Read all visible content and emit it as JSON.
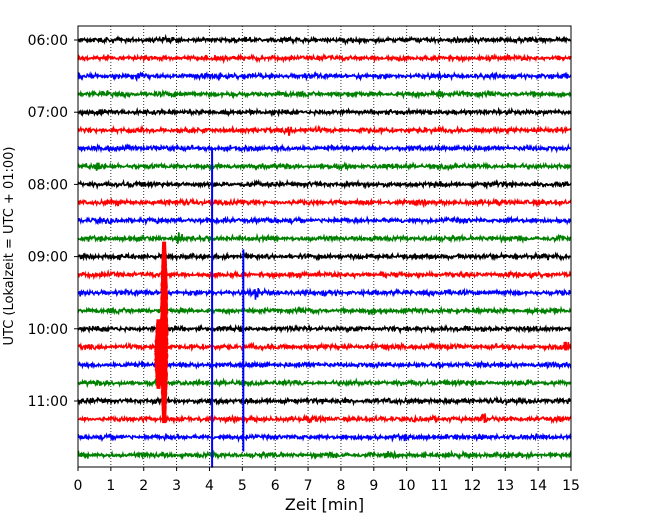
{
  "chart_data": {
    "type": "line",
    "title": "",
    "xlabel": "Zeit  [min]",
    "ylabel": "UTC (Lokalzeit = UTC + 01:00)",
    "xlim": [
      0,
      15
    ],
    "x_ticks": [
      0,
      1,
      2,
      3,
      4,
      5,
      6,
      7,
      8,
      9,
      10,
      11,
      12,
      13,
      14,
      15
    ],
    "x_tick_labels": [
      "0",
      "1",
      "2",
      "3",
      "4",
      "5",
      "6",
      "7",
      "8",
      "9",
      "10",
      "11",
      "12",
      "13",
      "14",
      "15"
    ],
    "y_tick_labels": [
      "06:00",
      "07:00",
      "08:00",
      "09:00",
      "10:00",
      "11:00"
    ],
    "trace_minutes": 15,
    "grid": {
      "x": "dotted",
      "y": false
    },
    "colors": [
      "#000000",
      "#ff0000",
      "#0000ff",
      "#008000"
    ],
    "traces": [
      {
        "start": "06:00",
        "color": "#000000",
        "events": []
      },
      {
        "start": "06:15",
        "color": "#ff0000",
        "events": []
      },
      {
        "start": "06:30",
        "color": "#0000ff",
        "events": [
          {
            "t": 1.85,
            "amp": 0.5
          },
          {
            "t": 4.3,
            "amp": 0.35
          }
        ]
      },
      {
        "start": "06:45",
        "color": "#008000",
        "events": [
          {
            "t": 11.0,
            "amp": 0.35
          }
        ]
      },
      {
        "start": "07:00",
        "color": "#000000",
        "events": []
      },
      {
        "start": "07:15",
        "color": "#ff0000",
        "events": [
          {
            "t": 6.4,
            "amp": 0.55
          }
        ]
      },
      {
        "start": "07:30",
        "color": "#0000ff",
        "events": []
      },
      {
        "start": "07:45",
        "color": "#008000",
        "events": [
          {
            "t": 0.65,
            "amp": 0.4
          }
        ]
      },
      {
        "start": "08:00",
        "color": "#000000",
        "events": []
      },
      {
        "start": "08:15",
        "color": "#ff0000",
        "events": []
      },
      {
        "start": "08:30",
        "color": "#0000ff",
        "events": []
      },
      {
        "start": "08:45",
        "color": "#008000",
        "events": [
          {
            "t": 3.1,
            "amp": 0.45
          }
        ]
      },
      {
        "start": "09:00",
        "color": "#000000",
        "events": []
      },
      {
        "start": "09:15",
        "color": "#ff0000",
        "events": []
      },
      {
        "start": "09:30",
        "color": "#0000ff",
        "events": [
          {
            "t": 5.4,
            "amp": 0.6
          }
        ]
      },
      {
        "start": "09:45",
        "color": "#008000",
        "events": []
      },
      {
        "start": "10:00",
        "color": "#000000",
        "events": []
      },
      {
        "start": "10:15",
        "color": "#ff0000",
        "events": [
          {
            "t": 14.85,
            "amp": 0.5
          }
        ]
      },
      {
        "start": "10:30",
        "color": "#0000ff",
        "events": []
      },
      {
        "start": "10:45",
        "color": "#008000",
        "events": []
      },
      {
        "start": "11:00",
        "color": "#000000",
        "events": []
      },
      {
        "start": "11:15",
        "color": "#ff0000",
        "events": [
          {
            "t": 12.35,
            "amp": 0.5
          }
        ]
      },
      {
        "start": "11:30",
        "color": "#0000ff",
        "events": []
      },
      {
        "start": "11:45",
        "color": "#008000",
        "events": []
      }
    ],
    "spikes": [
      {
        "t": 4.08,
        "from_trace": 6,
        "to_trace": 23.7,
        "color": "#0000ff"
      },
      {
        "t": 5.03,
        "from_trace": 11.6,
        "to_trace": 22.8,
        "color": "#0000ff"
      },
      {
        "t": 2.62,
        "from_trace": 11.2,
        "to_trace": 21.2,
        "color": "#ff0000",
        "blob": true
      },
      {
        "t": 2.45,
        "from_trace": 15.5,
        "to_trace": 19.3,
        "color": "#ff0000",
        "blob": true
      }
    ]
  }
}
